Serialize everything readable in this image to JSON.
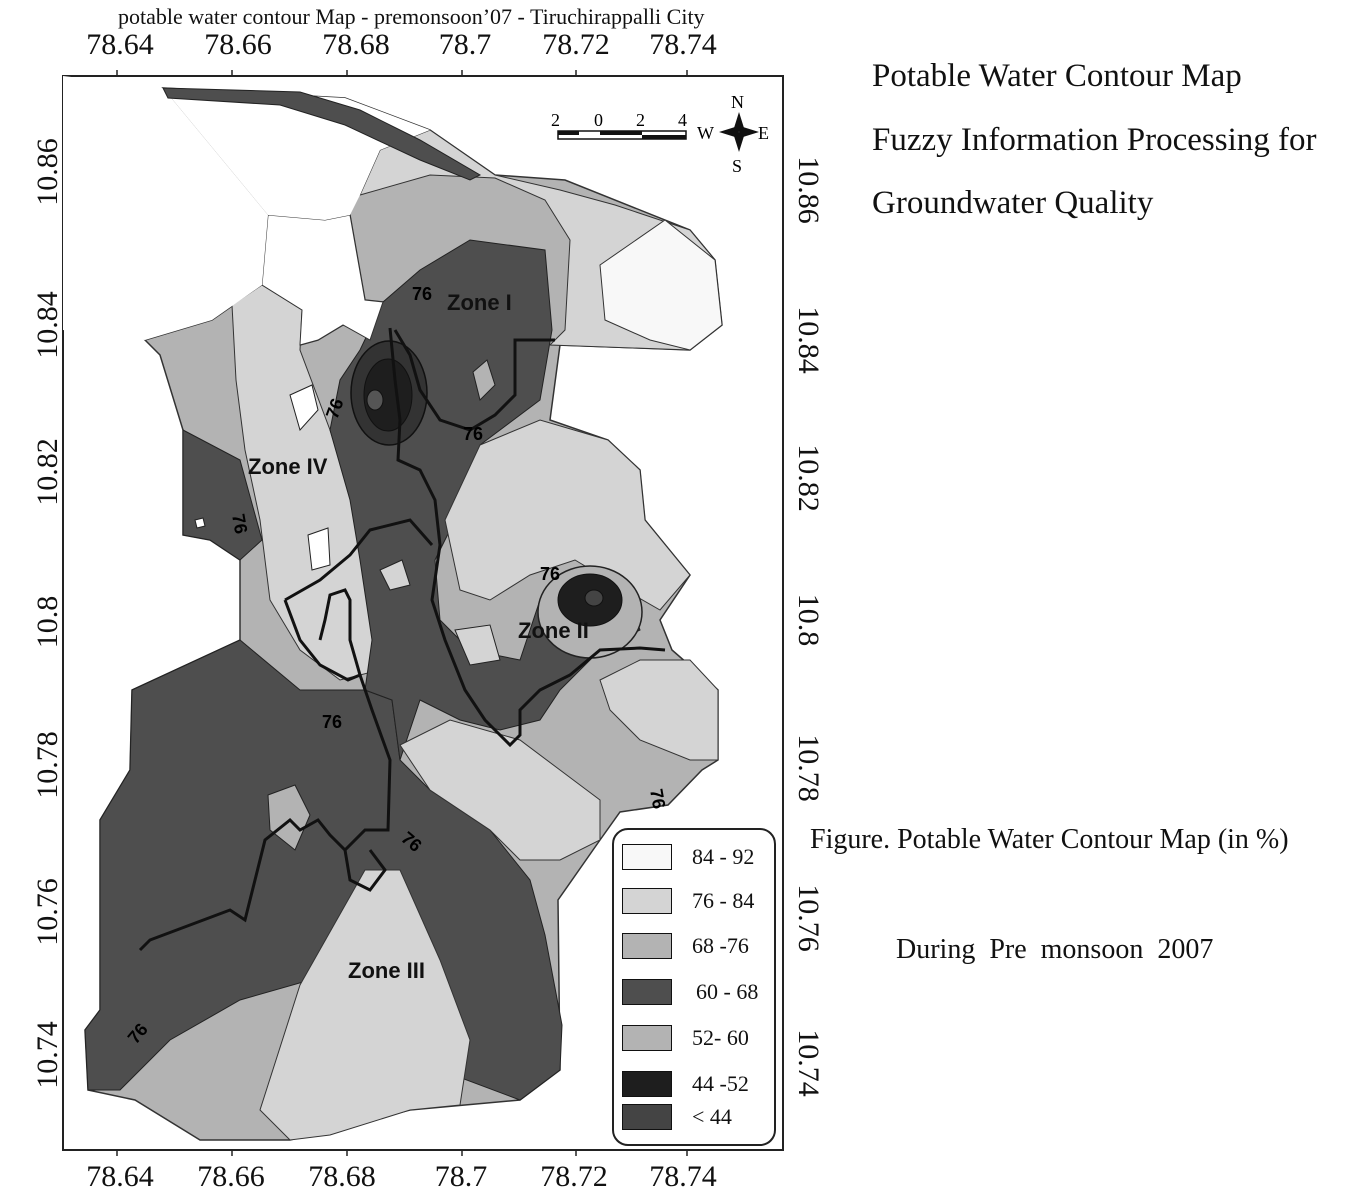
{
  "map": {
    "title": "potable water contour Map - premonsoon’07 - Tiruchirappalli City",
    "x_ticks": [
      "78.64",
      "78.66",
      "78.68",
      "78.7",
      "78.72",
      "78.74"
    ],
    "y_ticks": [
      "10.86",
      "10.84",
      "10.82",
      "10.8",
      "10.78",
      "10.76",
      "10.74"
    ],
    "zones": [
      "Zone I",
      "Zone II",
      "Zone III",
      "Zone IV"
    ],
    "contour_label": "76",
    "scale_bar": {
      "labels": [
        "2",
        "0",
        "2",
        "4"
      ]
    },
    "north_arrow": {
      "n": "N",
      "e": "E",
      "s": "S",
      "w": "W"
    },
    "legend": [
      {
        "label": "84 - 92",
        "color": "#f8f8f8"
      },
      {
        "label": "76 - 84",
        "color": "#d4d4d4"
      },
      {
        "label": "68 -76",
        "color": "#b3b3b3"
      },
      {
        "label": "60 - 68",
        "color": "#4e4e4e"
      },
      {
        "label": "52- 60",
        "color": "#b3b3b3"
      },
      {
        "label": "44 -52",
        "color": "#1e1e1e"
      },
      {
        "label": "< 44",
        "color": "#444444"
      }
    ]
  },
  "side": {
    "title_lines": [
      "Potable Water Contour Map",
      "Fuzzy Information Processing for",
      "Groundwater Quality"
    ],
    "caption": "Figure. Potable Water Contour Map (in %)",
    "subcaption": "During  Pre  monsoon  2007"
  }
}
